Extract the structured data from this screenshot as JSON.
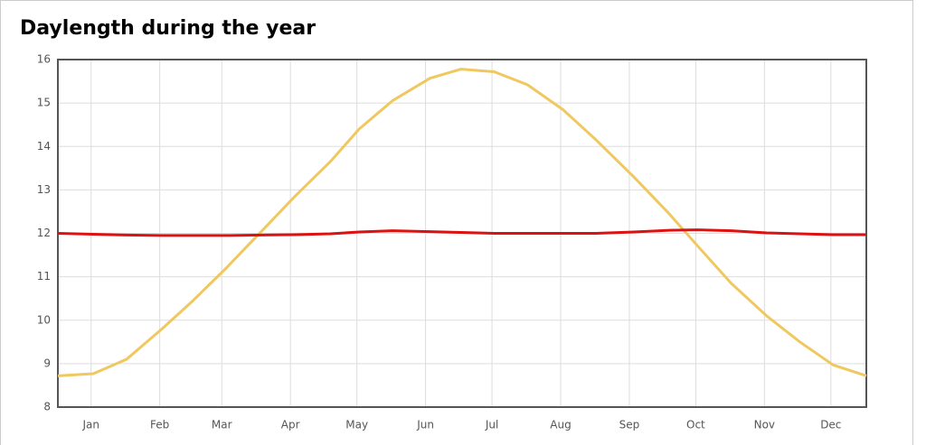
{
  "chart_data": {
    "type": "line",
    "title": "Daylength during the year",
    "x": [
      0,
      16,
      31,
      47,
      61,
      76,
      92,
      107,
      123,
      136,
      151,
      168,
      182,
      197,
      212,
      228,
      243,
      260,
      276,
      289,
      304,
      320,
      335,
      350,
      365
    ],
    "series": [
      {
        "color": "#f0c860",
        "values": [
          8.72,
          8.77,
          9.1,
          9.8,
          10.45,
          11.2,
          12.05,
          12.85,
          13.65,
          14.4,
          15.05,
          15.57,
          15.78,
          15.72,
          15.42,
          14.85,
          14.15,
          13.3,
          12.45,
          11.7,
          10.85,
          10.1,
          9.5,
          8.97,
          8.72
        ]
      },
      {
        "color": "#dd1111",
        "values": [
          12.0,
          11.98,
          11.96,
          11.95,
          11.95,
          11.95,
          11.96,
          11.97,
          11.99,
          12.03,
          12.06,
          12.04,
          12.02,
          12.0,
          12.0,
          12.0,
          12.0,
          12.03,
          12.07,
          12.08,
          12.06,
          12.01,
          11.99,
          11.97,
          11.97
        ]
      }
    ],
    "xlim": [
      0,
      365
    ],
    "xticks": [
      {
        "value": 15,
        "label": "Jan"
      },
      {
        "value": 46,
        "label": "Feb"
      },
      {
        "value": 74,
        "label": "Mar"
      },
      {
        "value": 105,
        "label": "Apr"
      },
      {
        "value": 135,
        "label": "May"
      },
      {
        "value": 166,
        "label": "Jun"
      },
      {
        "value": 196,
        "label": "Jul"
      },
      {
        "value": 227,
        "label": "Aug"
      },
      {
        "value": 258,
        "label": "Sep"
      },
      {
        "value": 288,
        "label": "Oct"
      },
      {
        "value": 319,
        "label": "Nov"
      },
      {
        "value": 349,
        "label": "Dec"
      }
    ],
    "ylim": [
      8,
      16
    ],
    "yticks": [
      8,
      9,
      10,
      11,
      12,
      13,
      14,
      15,
      16
    ],
    "grid": true
  }
}
